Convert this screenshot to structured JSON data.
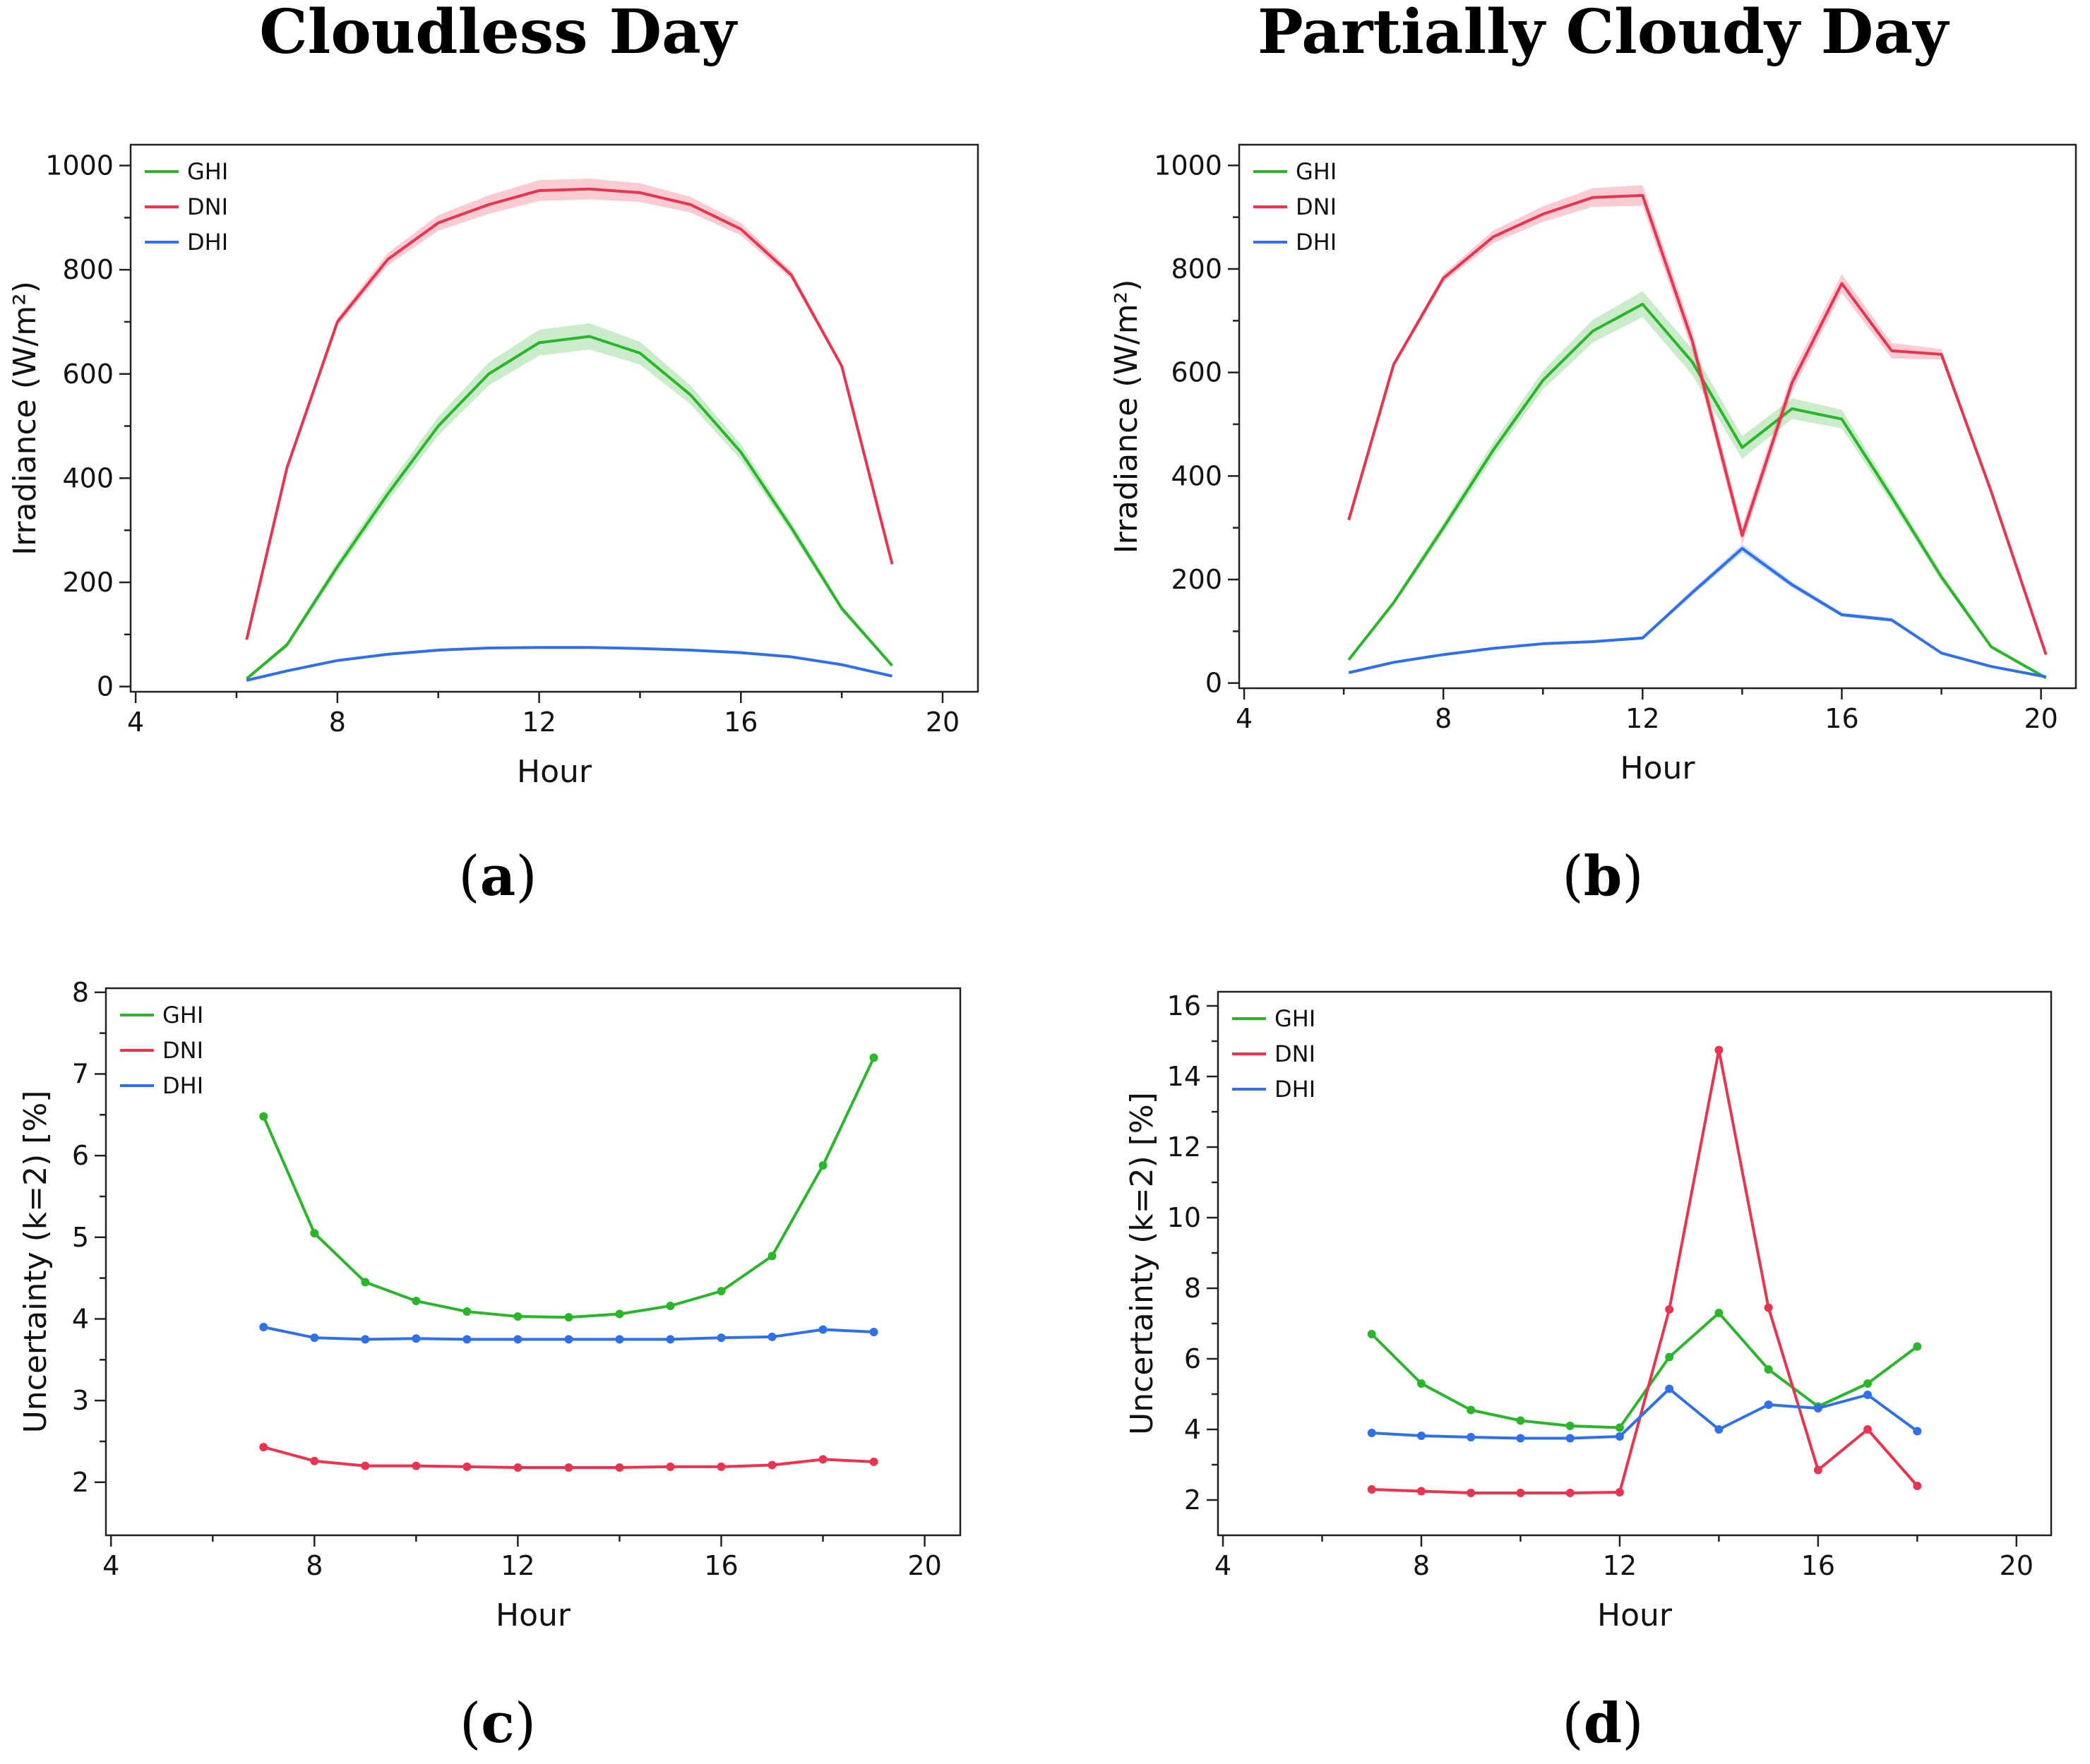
{
  "titles": {
    "left": "Cloudless Day",
    "right": "Partially Cloudy Day"
  },
  "colors": {
    "GHI": "#2bb52b",
    "DNI": "#e8344e",
    "DHI": "#2f6fe8"
  },
  "chart_data": [
    {
      "id": "a",
      "type": "line",
      "panel_label": "a",
      "xlabel": "Hour",
      "ylabel": "Irradiance (W/m²)",
      "xlim": [
        3.9,
        20.7
      ],
      "ylim": [
        -10,
        1040
      ],
      "xticks": [
        4,
        8,
        12,
        16,
        20
      ],
      "xtick_labels": [
        "4",
        "8",
        "12",
        "16",
        "20"
      ],
      "yticks": [
        0,
        200,
        400,
        600,
        800,
        1000
      ],
      "ytick_labels": [
        "0",
        "200",
        "400",
        "600",
        "800",
        "1000"
      ],
      "legend": "top-left",
      "band": true,
      "markers": false,
      "series": [
        {
          "name": "GHI",
          "x": [
            6.2,
            7,
            8,
            9,
            10,
            11,
            12,
            13,
            14,
            15,
            16,
            17,
            18,
            19
          ],
          "values": [
            15,
            80,
            230,
            370,
            500,
            600,
            660,
            672,
            640,
            560,
            450,
            305,
            150,
            40
          ],
          "band": [
            3,
            5,
            10,
            15,
            18,
            22,
            25,
            25,
            22,
            18,
            15,
            10,
            6,
            3
          ]
        },
        {
          "name": "DNI",
          "x": [
            6.2,
            7,
            8,
            9,
            10,
            11,
            12,
            13,
            14,
            15,
            16,
            17,
            18,
            19
          ],
          "values": [
            90,
            420,
            700,
            820,
            890,
            925,
            952,
            955,
            948,
            925,
            878,
            790,
            615,
            235
          ],
          "band": [
            3,
            5,
            8,
            12,
            15,
            18,
            20,
            20,
            18,
            15,
            12,
            8,
            5,
            3
          ]
        },
        {
          "name": "DHI",
          "x": [
            6.2,
            7,
            8,
            9,
            10,
            11,
            12,
            13,
            14,
            15,
            16,
            17,
            18,
            19
          ],
          "values": [
            12,
            30,
            50,
            62,
            70,
            74,
            75,
            75,
            73,
            70,
            65,
            57,
            42,
            20
          ],
          "band": [
            1,
            1,
            2,
            2,
            2,
            2,
            2,
            2,
            2,
            2,
            2,
            2,
            2,
            1
          ]
        }
      ]
    },
    {
      "id": "b",
      "type": "line",
      "panel_label": "b",
      "xlabel": "Hour",
      "ylabel": "Irradiance (W/m²)",
      "xlim": [
        3.9,
        20.7
      ],
      "ylim": [
        -10,
        1040
      ],
      "xticks": [
        4,
        8,
        12,
        16,
        20
      ],
      "xtick_labels": [
        "4",
        "8",
        "12",
        "16",
        "20"
      ],
      "yticks": [
        0,
        200,
        400,
        600,
        800,
        1000
      ],
      "ytick_labels": [
        "0",
        "200",
        "400",
        "600",
        "800",
        "1000"
      ],
      "legend": "top-left",
      "band": true,
      "markers": false,
      "series": [
        {
          "name": "GHI",
          "x": [
            6.1,
            7,
            8,
            9,
            10,
            11,
            12,
            13,
            14,
            15,
            16,
            17,
            18,
            19,
            20.1
          ],
          "values": [
            45,
            155,
            300,
            450,
            585,
            680,
            732,
            620,
            455,
            530,
            510,
            360,
            205,
            70,
            10
          ],
          "band": [
            3,
            5,
            10,
            15,
            18,
            22,
            25,
            25,
            22,
            20,
            18,
            12,
            8,
            4,
            2
          ]
        },
        {
          "name": "DNI",
          "x": [
            6.1,
            7,
            8,
            9,
            10,
            11,
            12,
            13,
            14,
            15,
            16,
            17,
            18,
            19,
            20.1
          ],
          "values": [
            315,
            615,
            782,
            862,
            906,
            938,
            942,
            660,
            285,
            580,
            772,
            642,
            635,
            370,
            55
          ],
          "band": [
            3,
            5,
            8,
            12,
            15,
            18,
            20,
            20,
            18,
            18,
            18,
            15,
            10,
            5,
            3
          ]
        },
        {
          "name": "DHI",
          "x": [
            6.1,
            7,
            8,
            9,
            10,
            11,
            12,
            13,
            14,
            15,
            16,
            17,
            18,
            19,
            20.1
          ],
          "values": [
            20,
            40,
            55,
            67,
            76,
            80,
            87,
            175,
            260,
            190,
            132,
            122,
            58,
            32,
            12
          ],
          "band": [
            1,
            1,
            2,
            2,
            2,
            2,
            3,
            6,
            8,
            6,
            4,
            4,
            2,
            2,
            1
          ]
        }
      ]
    },
    {
      "id": "c",
      "type": "line",
      "panel_label": "c",
      "xlabel": "Hour",
      "ylabel": "Uncertainty (k=2) [%]",
      "xlim": [
        3.9,
        20.7
      ],
      "ylim": [
        1.35,
        8.05
      ],
      "xticks": [
        4,
        8,
        12,
        16,
        20
      ],
      "xtick_labels": [
        "4",
        "8",
        "12",
        "16",
        "20"
      ],
      "yticks": [
        2,
        3,
        4,
        5,
        6,
        7,
        8
      ],
      "ytick_labels": [
        "2",
        "3",
        "4",
        "5",
        "6",
        "7",
        "8"
      ],
      "legend": "top-left",
      "band": false,
      "markers": true,
      "series": [
        {
          "name": "GHI",
          "x": [
            7,
            8,
            9,
            10,
            11,
            12,
            13,
            14,
            15,
            16,
            17,
            18,
            19
          ],
          "values": [
            6.48,
            5.05,
            4.45,
            4.22,
            4.09,
            4.03,
            4.02,
            4.06,
            4.16,
            4.34,
            4.77,
            5.88,
            7.2
          ]
        },
        {
          "name": "DNI",
          "x": [
            7,
            8,
            9,
            10,
            11,
            12,
            13,
            14,
            15,
            16,
            17,
            18,
            19
          ],
          "values": [
            2.43,
            2.26,
            2.2,
            2.2,
            2.19,
            2.18,
            2.18,
            2.18,
            2.19,
            2.19,
            2.21,
            2.28,
            2.25
          ]
        },
        {
          "name": "DHI",
          "x": [
            7,
            8,
            9,
            10,
            11,
            12,
            13,
            14,
            15,
            16,
            17,
            18,
            19
          ],
          "values": [
            3.9,
            3.77,
            3.75,
            3.76,
            3.75,
            3.75,
            3.75,
            3.75,
            3.75,
            3.77,
            3.78,
            3.87,
            3.84
          ]
        }
      ]
    },
    {
      "id": "d",
      "type": "line",
      "panel_label": "d",
      "xlabel": "Hour",
      "ylabel": "Uncertainty (k=2) [%]",
      "xlim": [
        3.9,
        20.7
      ],
      "ylim": [
        1.0,
        16.4
      ],
      "xticks": [
        4,
        8,
        12,
        16,
        20
      ],
      "xtick_labels": [
        "4",
        "8",
        "12",
        "16",
        "20"
      ],
      "yticks": [
        2,
        4,
        6,
        8,
        10,
        12,
        14,
        16
      ],
      "ytick_labels": [
        "2",
        "4",
        "6",
        "8",
        "10",
        "12",
        "14",
        "16"
      ],
      "legend": "top-left",
      "band": false,
      "markers": true,
      "series": [
        {
          "name": "GHI",
          "x": [
            7,
            8,
            9,
            10,
            11,
            12,
            13,
            14,
            15,
            16,
            17,
            18
          ],
          "values": [
            6.7,
            5.3,
            4.55,
            4.25,
            4.1,
            4.05,
            6.05,
            7.3,
            5.7,
            4.65,
            5.3,
            6.35
          ]
        },
        {
          "name": "DNI",
          "x": [
            7,
            8,
            9,
            10,
            11,
            12,
            13,
            14,
            15,
            16,
            17,
            18
          ],
          "values": [
            2.3,
            2.25,
            2.2,
            2.2,
            2.2,
            2.22,
            7.4,
            14.75,
            7.45,
            2.85,
            4.0,
            2.4
          ]
        },
        {
          "name": "DHI",
          "x": [
            7,
            8,
            9,
            10,
            11,
            12,
            13,
            14,
            15,
            16,
            17,
            18
          ],
          "values": [
            3.9,
            3.82,
            3.78,
            3.75,
            3.75,
            3.8,
            5.15,
            4.0,
            4.7,
            4.6,
            4.98,
            3.95
          ]
        }
      ]
    }
  ]
}
